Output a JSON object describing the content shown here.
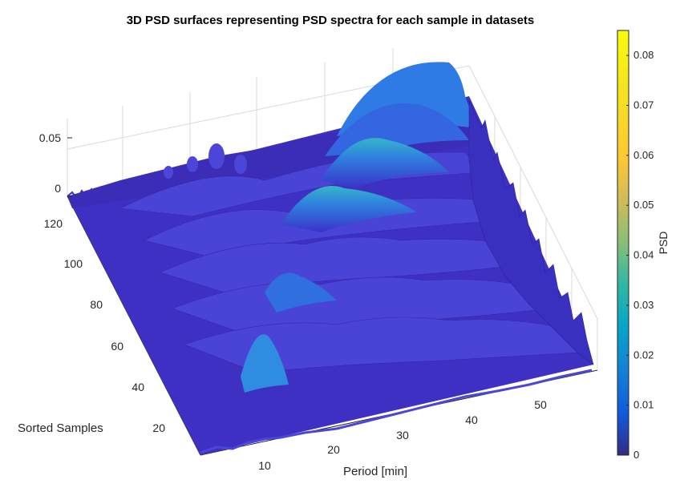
{
  "chart_data": {
    "type": "surface",
    "title": "3D PSD surfaces representing PSD spectra for each sample in datasets",
    "xlabel": "Period [min]",
    "ylabel": "Sorted Samples",
    "zlabel": "",
    "colorbar_label": "PSD",
    "colormap": "parula",
    "xlim": [
      0,
      60
    ],
    "ylim": [
      0,
      130
    ],
    "zlim": [
      0,
      0.085
    ],
    "x_ticks": [
      "10",
      "20",
      "30",
      "40",
      "50"
    ],
    "y_ticks": [
      "20",
      "40",
      "60",
      "80",
      "100",
      "120"
    ],
    "z_ticks": [
      "0",
      "0.05"
    ],
    "colorbar_ticks": [
      "0",
      "0.01",
      "0.02",
      "0.03",
      "0.04",
      "0.05",
      "0.06",
      "0.07",
      "0.08"
    ],
    "colorbar_range": [
      0,
      0.085
    ],
    "grid": true,
    "peaks": [
      {
        "period": 31,
        "sample": 105,
        "psd": 0.021
      },
      {
        "period": 28,
        "sample": 95,
        "psd": 0.024
      },
      {
        "period": 27,
        "sample": 85,
        "psd": 0.023
      },
      {
        "period": 24,
        "sample": 60,
        "psd": 0.015
      },
      {
        "period": 20,
        "sample": 45,
        "psd": 0.017
      }
    ],
    "description_colors": {
      "low": "#3e26a8",
      "mid": "#1ea8e0",
      "high": "#f9fb0e"
    }
  }
}
